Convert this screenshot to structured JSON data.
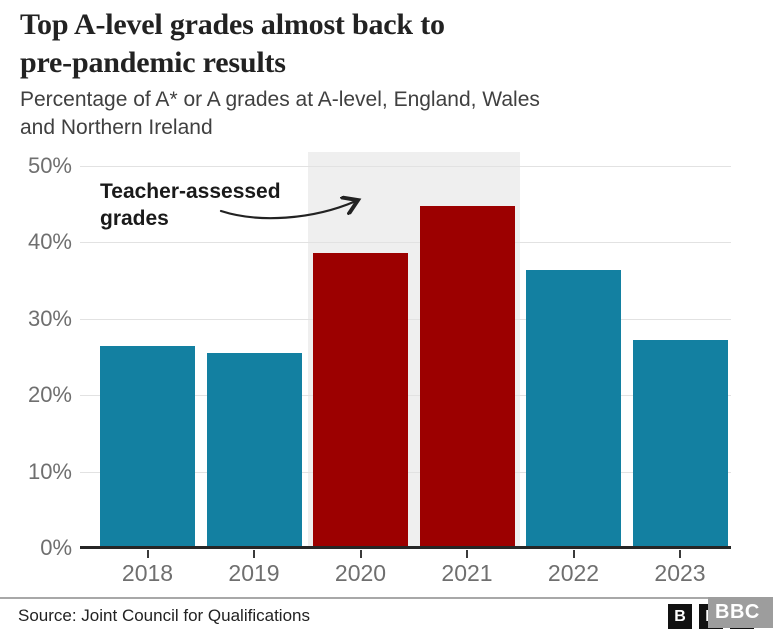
{
  "header": {
    "title_lines": [
      "Top A-level grades almost back to",
      "pre-pandemic results"
    ],
    "subtitle_lines": [
      "Percentage of A* or A grades at A-level, England, Wales",
      "and Northern Ireland"
    ]
  },
  "chart_data": {
    "type": "bar",
    "title": "Top A-level grades almost back to pre-pandemic results",
    "subtitle": "Percentage of A* or A grades at A-level, England, Wales and Northern Ireland",
    "categories": [
      "2018",
      "2019",
      "2020",
      "2021",
      "2022",
      "2023"
    ],
    "values": [
      26.4,
      25.5,
      38.6,
      44.8,
      36.4,
      27.2
    ],
    "bar_colors": [
      "#1380a1",
      "#1380a1",
      "#9c0000",
      "#9c0000",
      "#1380a1",
      "#1380a1"
    ],
    "xlabel": "",
    "ylabel": "",
    "ylim": [
      0,
      50
    ],
    "yticks": [
      {
        "value": 0,
        "label": "0%"
      },
      {
        "value": 10,
        "label": "10%"
      },
      {
        "value": 20,
        "label": "20%"
      },
      {
        "value": 30,
        "label": "30%"
      },
      {
        "value": 40,
        "label": "40%"
      },
      {
        "value": 50,
        "label": "50%"
      }
    ],
    "grid": true,
    "legend": "none",
    "annotation": {
      "text_lines": [
        "Teacher-assessed",
        "grades"
      ],
      "points_to": "highlight band over 2020 and 2021 bars"
    },
    "highlight_band": {
      "from_category": "2020",
      "to_category": "2021",
      "color": "#efefef"
    }
  },
  "footer": {
    "source": "Source: Joint Council for Qualifications",
    "bbc_logo_blocks": [
      "B",
      "B",
      "C"
    ],
    "bbc_logo_overlay": "BBC"
  },
  "colors": {
    "teal_bar": "#1380a1",
    "red_bar": "#9c0000",
    "band": "#efefef",
    "gridline": "#e2e2e2",
    "axis": "#262626",
    "tick_label": "#6f6f6f",
    "title_text": "#222222",
    "subtitle_text": "#404040"
  }
}
